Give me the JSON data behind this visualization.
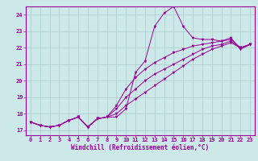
{
  "background_color": "#cce8e8",
  "grid_color": "#aacccc",
  "line_color": "#990099",
  "xlabel": "Windchill (Refroidissement éolien,°C)",
  "xlim": [
    -0.5,
    23.5
  ],
  "ylim": [
    16.7,
    24.5
  ],
  "yticks": [
    17,
    18,
    19,
    20,
    21,
    22,
    23,
    24
  ],
  "xticks": [
    0,
    1,
    2,
    3,
    4,
    5,
    6,
    7,
    8,
    9,
    10,
    11,
    12,
    13,
    14,
    15,
    16,
    17,
    18,
    19,
    20,
    21,
    22,
    23
  ],
  "series": [
    [
      17.5,
      17.3,
      17.2,
      17.3,
      17.6,
      17.8,
      17.2,
      17.7,
      17.8,
      17.8,
      18.3,
      20.5,
      21.2,
      23.3,
      24.1,
      24.5,
      23.3,
      22.6,
      22.5,
      22.5,
      22.4,
      22.6,
      21.9,
      22.2
    ],
    [
      17.5,
      17.3,
      17.2,
      17.3,
      17.6,
      17.8,
      17.2,
      17.7,
      17.8,
      18.5,
      19.5,
      20.2,
      20.7,
      21.1,
      21.4,
      21.7,
      21.9,
      22.1,
      22.2,
      22.3,
      22.4,
      22.5,
      22.0,
      22.2
    ],
    [
      17.5,
      17.3,
      17.2,
      17.3,
      17.6,
      17.8,
      17.2,
      17.7,
      17.8,
      18.3,
      19.0,
      19.5,
      20.0,
      20.4,
      20.7,
      21.0,
      21.3,
      21.6,
      21.9,
      22.1,
      22.2,
      22.4,
      22.0,
      22.2
    ],
    [
      17.5,
      17.3,
      17.2,
      17.3,
      17.6,
      17.8,
      17.2,
      17.7,
      17.8,
      18.0,
      18.5,
      18.9,
      19.3,
      19.7,
      20.1,
      20.5,
      20.9,
      21.3,
      21.6,
      21.9,
      22.1,
      22.3,
      22.0,
      22.2
    ]
  ]
}
